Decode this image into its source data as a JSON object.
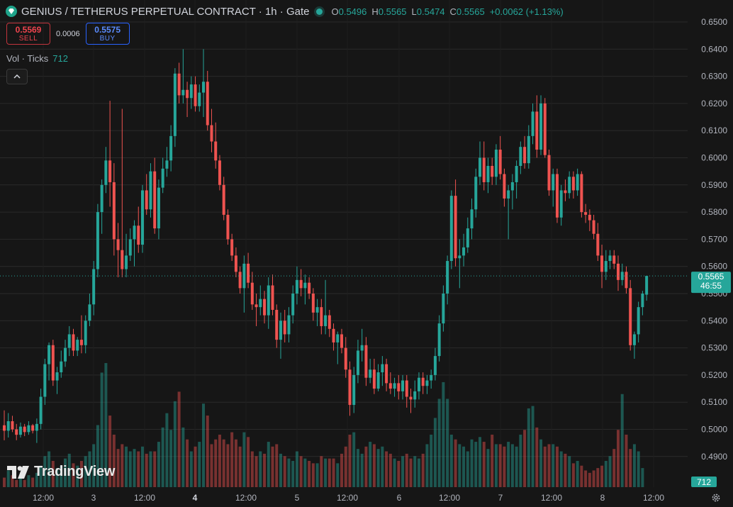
{
  "header": {
    "title": "GENIUS / TETHERUS PERPETUAL CONTRACT · 1h · Gate",
    "ohlc": {
      "o_label": "O",
      "o_value": "0.5496",
      "h_label": "H",
      "h_value": "0.5565",
      "l_label": "L",
      "l_value": "0.5474",
      "c_label": "C",
      "c_value": "0.5565",
      "change": "+0.0062 (+1.13%)"
    }
  },
  "trade": {
    "sell_price": "0.5569",
    "sell_label": "SELL",
    "spread": "0.0006",
    "buy_price": "0.5575",
    "buy_label": "BUY"
  },
  "volume_legend": {
    "label": "Vol · Ticks",
    "value": "712"
  },
  "price_tag": {
    "price": "0.5565",
    "countdown": "46:55"
  },
  "volume_tag": "712",
  "branding": "TradingView",
  "icons": [
    "diamond-logo-icon",
    "live-dot-icon",
    "chevron-up-icon",
    "tradingview-logo-icon",
    "gear-icon"
  ],
  "colors": {
    "up": "#26a69a",
    "down": "#ef5350",
    "background": "#161616",
    "grid": "#2a2a2a",
    "axis_text": "#b2b5be"
  },
  "chart_data": {
    "type": "candlestick",
    "interval": "1h",
    "y_axis": {
      "ticks": [
        "0.6500",
        "0.6400",
        "0.6300",
        "0.6200",
        "0.6100",
        "0.6000",
        "0.5900",
        "0.5800",
        "0.5700",
        "0.5600",
        "0.5500",
        "0.5400",
        "0.5300",
        "0.5200",
        "0.5100",
        "0.5000",
        "0.4900"
      ],
      "range": [
        0.4845,
        0.6535
      ]
    },
    "x_axis": {
      "labels": [
        "12:00",
        "3",
        "12:00",
        "4",
        "12:00",
        "5",
        "12:00",
        "6",
        "12:00",
        "7",
        "12:00",
        "8",
        "12:00"
      ],
      "bold": [
        "4"
      ]
    },
    "last_price": 0.5565,
    "candles": [
      {
        "o": 0.5015,
        "h": 0.507,
        "l": 0.496,
        "c": 0.4995
      },
      {
        "o": 0.4995,
        "h": 0.506,
        "l": 0.497,
        "c": 0.503
      },
      {
        "o": 0.503,
        "h": 0.505,
        "l": 0.499,
        "c": 0.5
      },
      {
        "o": 0.5,
        "h": 0.502,
        "l": 0.496,
        "c": 0.498
      },
      {
        "o": 0.498,
        "h": 0.5025,
        "l": 0.497,
        "c": 0.501
      },
      {
        "o": 0.501,
        "h": 0.502,
        "l": 0.4975,
        "c": 0.499
      },
      {
        "o": 0.499,
        "h": 0.503,
        "l": 0.498,
        "c": 0.5015
      },
      {
        "o": 0.5015,
        "h": 0.502,
        "l": 0.4985,
        "c": 0.4995
      },
      {
        "o": 0.4995,
        "h": 0.504,
        "l": 0.495,
        "c": 0.502
      },
      {
        "o": 0.502,
        "h": 0.515,
        "l": 0.5,
        "c": 0.512
      },
      {
        "o": 0.512,
        "h": 0.526,
        "l": 0.509,
        "c": 0.524
      },
      {
        "o": 0.524,
        "h": 0.532,
        "l": 0.518,
        "c": 0.531
      },
      {
        "o": 0.531,
        "h": 0.533,
        "l": 0.516,
        "c": 0.518
      },
      {
        "o": 0.518,
        "h": 0.523,
        "l": 0.513,
        "c": 0.521
      },
      {
        "o": 0.521,
        "h": 0.529,
        "l": 0.519,
        "c": 0.525
      },
      {
        "o": 0.525,
        "h": 0.533,
        "l": 0.523,
        "c": 0.53
      },
      {
        "o": 0.53,
        "h": 0.538,
        "l": 0.527,
        "c": 0.535
      },
      {
        "o": 0.535,
        "h": 0.537,
        "l": 0.527,
        "c": 0.529
      },
      {
        "o": 0.529,
        "h": 0.534,
        "l": 0.527,
        "c": 0.533
      },
      {
        "o": 0.533,
        "h": 0.542,
        "l": 0.528,
        "c": 0.531
      },
      {
        "o": 0.531,
        "h": 0.542,
        "l": 0.528,
        "c": 0.54
      },
      {
        "o": 0.54,
        "h": 0.55,
        "l": 0.538,
        "c": 0.546
      },
      {
        "o": 0.546,
        "h": 0.562,
        "l": 0.542,
        "c": 0.559
      },
      {
        "o": 0.559,
        "h": 0.583,
        "l": 0.556,
        "c": 0.58
      },
      {
        "o": 0.58,
        "h": 0.592,
        "l": 0.572,
        "c": 0.59
      },
      {
        "o": 0.59,
        "h": 0.604,
        "l": 0.587,
        "c": 0.599
      },
      {
        "o": 0.599,
        "h": 0.621,
        "l": 0.582,
        "c": 0.591
      },
      {
        "o": 0.591,
        "h": 0.598,
        "l": 0.564,
        "c": 0.57
      },
      {
        "o": 0.57,
        "h": 0.576,
        "l": 0.556,
        "c": 0.566
      },
      {
        "o": 0.566,
        "h": 0.618,
        "l": 0.556,
        "c": 0.559
      },
      {
        "o": 0.559,
        "h": 0.572,
        "l": 0.556,
        "c": 0.564
      },
      {
        "o": 0.564,
        "h": 0.574,
        "l": 0.562,
        "c": 0.57
      },
      {
        "o": 0.57,
        "h": 0.577,
        "l": 0.56,
        "c": 0.575
      },
      {
        "o": 0.575,
        "h": 0.582,
        "l": 0.565,
        "c": 0.568
      },
      {
        "o": 0.568,
        "h": 0.59,
        "l": 0.565,
        "c": 0.588
      },
      {
        "o": 0.588,
        "h": 0.594,
        "l": 0.579,
        "c": 0.581
      },
      {
        "o": 0.581,
        "h": 0.598,
        "l": 0.578,
        "c": 0.595
      },
      {
        "o": 0.595,
        "h": 0.6,
        "l": 0.572,
        "c": 0.574
      },
      {
        "o": 0.574,
        "h": 0.592,
        "l": 0.57,
        "c": 0.589
      },
      {
        "o": 0.589,
        "h": 0.6,
        "l": 0.587,
        "c": 0.596
      },
      {
        "o": 0.596,
        "h": 0.604,
        "l": 0.593,
        "c": 0.599
      },
      {
        "o": 0.599,
        "h": 0.612,
        "l": 0.595,
        "c": 0.608
      },
      {
        "o": 0.608,
        "h": 0.633,
        "l": 0.604,
        "c": 0.631
      },
      {
        "o": 0.631,
        "h": 0.635,
        "l": 0.62,
        "c": 0.623
      },
      {
        "o": 0.623,
        "h": 0.64,
        "l": 0.62,
        "c": 0.625
      },
      {
        "o": 0.625,
        "h": 0.628,
        "l": 0.615,
        "c": 0.622
      },
      {
        "o": 0.622,
        "h": 0.63,
        "l": 0.618,
        "c": 0.627
      },
      {
        "o": 0.627,
        "h": 0.63,
        "l": 0.617,
        "c": 0.619
      },
      {
        "o": 0.619,
        "h": 0.627,
        "l": 0.617,
        "c": 0.624
      },
      {
        "o": 0.624,
        "h": 0.64,
        "l": 0.615,
        "c": 0.628
      },
      {
        "o": 0.628,
        "h": 0.632,
        "l": 0.61,
        "c": 0.612
      },
      {
        "o": 0.612,
        "h": 0.618,
        "l": 0.602,
        "c": 0.606
      },
      {
        "o": 0.606,
        "h": 0.613,
        "l": 0.596,
        "c": 0.599
      },
      {
        "o": 0.599,
        "h": 0.601,
        "l": 0.588,
        "c": 0.59
      },
      {
        "o": 0.59,
        "h": 0.593,
        "l": 0.577,
        "c": 0.579
      },
      {
        "o": 0.579,
        "h": 0.581,
        "l": 0.568,
        "c": 0.57
      },
      {
        "o": 0.57,
        "h": 0.572,
        "l": 0.562,
        "c": 0.564
      },
      {
        "o": 0.564,
        "h": 0.567,
        "l": 0.556,
        "c": 0.558
      },
      {
        "o": 0.558,
        "h": 0.56,
        "l": 0.55,
        "c": 0.552
      },
      {
        "o": 0.552,
        "h": 0.564,
        "l": 0.543,
        "c": 0.561
      },
      {
        "o": 0.561,
        "h": 0.565,
        "l": 0.552,
        "c": 0.554
      },
      {
        "o": 0.554,
        "h": 0.558,
        "l": 0.544,
        "c": 0.546
      },
      {
        "o": 0.546,
        "h": 0.55,
        "l": 0.538,
        "c": 0.545
      },
      {
        "o": 0.545,
        "h": 0.553,
        "l": 0.542,
        "c": 0.548
      },
      {
        "o": 0.548,
        "h": 0.551,
        "l": 0.539,
        "c": 0.542
      },
      {
        "o": 0.542,
        "h": 0.556,
        "l": 0.537,
        "c": 0.553
      },
      {
        "o": 0.553,
        "h": 0.557,
        "l": 0.542,
        "c": 0.544
      },
      {
        "o": 0.544,
        "h": 0.546,
        "l": 0.53,
        "c": 0.533
      },
      {
        "o": 0.533,
        "h": 0.543,
        "l": 0.526,
        "c": 0.54
      },
      {
        "o": 0.54,
        "h": 0.544,
        "l": 0.532,
        "c": 0.535
      },
      {
        "o": 0.535,
        "h": 0.545,
        "l": 0.532,
        "c": 0.542
      },
      {
        "o": 0.542,
        "h": 0.553,
        "l": 0.539,
        "c": 0.55
      },
      {
        "o": 0.55,
        "h": 0.56,
        "l": 0.546,
        "c": 0.555
      },
      {
        "o": 0.555,
        "h": 0.559,
        "l": 0.549,
        "c": 0.552
      },
      {
        "o": 0.552,
        "h": 0.557,
        "l": 0.546,
        "c": 0.554
      },
      {
        "o": 0.554,
        "h": 0.556,
        "l": 0.548,
        "c": 0.55
      },
      {
        "o": 0.55,
        "h": 0.552,
        "l": 0.54,
        "c": 0.543
      },
      {
        "o": 0.543,
        "h": 0.548,
        "l": 0.538,
        "c": 0.545
      },
      {
        "o": 0.545,
        "h": 0.548,
        "l": 0.535,
        "c": 0.538
      },
      {
        "o": 0.538,
        "h": 0.555,
        "l": 0.535,
        "c": 0.542
      },
      {
        "o": 0.542,
        "h": 0.544,
        "l": 0.534,
        "c": 0.537
      },
      {
        "o": 0.537,
        "h": 0.539,
        "l": 0.529,
        "c": 0.532
      },
      {
        "o": 0.532,
        "h": 0.536,
        "l": 0.524,
        "c": 0.535
      },
      {
        "o": 0.535,
        "h": 0.537,
        "l": 0.528,
        "c": 0.53
      },
      {
        "o": 0.53,
        "h": 0.534,
        "l": 0.519,
        "c": 0.522
      },
      {
        "o": 0.522,
        "h": 0.525,
        "l": 0.505,
        "c": 0.509
      },
      {
        "o": 0.509,
        "h": 0.523,
        "l": 0.506,
        "c": 0.52
      },
      {
        "o": 0.52,
        "h": 0.533,
        "l": 0.517,
        "c": 0.529
      },
      {
        "o": 0.529,
        "h": 0.537,
        "l": 0.525,
        "c": 0.531
      },
      {
        "o": 0.531,
        "h": 0.534,
        "l": 0.516,
        "c": 0.519
      },
      {
        "o": 0.519,
        "h": 0.526,
        "l": 0.517,
        "c": 0.522
      },
      {
        "o": 0.522,
        "h": 0.526,
        "l": 0.513,
        "c": 0.515
      },
      {
        "o": 0.515,
        "h": 0.524,
        "l": 0.514,
        "c": 0.521
      },
      {
        "o": 0.521,
        "h": 0.527,
        "l": 0.516,
        "c": 0.524
      },
      {
        "o": 0.524,
        "h": 0.526,
        "l": 0.514,
        "c": 0.517
      },
      {
        "o": 0.517,
        "h": 0.521,
        "l": 0.513,
        "c": 0.515
      },
      {
        "o": 0.515,
        "h": 0.519,
        "l": 0.512,
        "c": 0.517
      },
      {
        "o": 0.517,
        "h": 0.52,
        "l": 0.511,
        "c": 0.514
      },
      {
        "o": 0.514,
        "h": 0.52,
        "l": 0.511,
        "c": 0.518
      },
      {
        "o": 0.518,
        "h": 0.52,
        "l": 0.508,
        "c": 0.512
      },
      {
        "o": 0.512,
        "h": 0.515,
        "l": 0.506,
        "c": 0.511
      },
      {
        "o": 0.511,
        "h": 0.518,
        "l": 0.508,
        "c": 0.514
      },
      {
        "o": 0.514,
        "h": 0.521,
        "l": 0.511,
        "c": 0.519
      },
      {
        "o": 0.519,
        "h": 0.521,
        "l": 0.513,
        "c": 0.516
      },
      {
        "o": 0.516,
        "h": 0.52,
        "l": 0.513,
        "c": 0.518
      },
      {
        "o": 0.518,
        "h": 0.522,
        "l": 0.515,
        "c": 0.52
      },
      {
        "o": 0.52,
        "h": 0.53,
        "l": 0.518,
        "c": 0.527
      },
      {
        "o": 0.527,
        "h": 0.542,
        "l": 0.525,
        "c": 0.539
      },
      {
        "o": 0.539,
        "h": 0.553,
        "l": 0.536,
        "c": 0.55
      },
      {
        "o": 0.55,
        "h": 0.564,
        "l": 0.546,
        "c": 0.562
      },
      {
        "o": 0.562,
        "h": 0.588,
        "l": 0.559,
        "c": 0.586
      },
      {
        "o": 0.586,
        "h": 0.592,
        "l": 0.56,
        "c": 0.563
      },
      {
        "o": 0.563,
        "h": 0.57,
        "l": 0.552,
        "c": 0.564
      },
      {
        "o": 0.564,
        "h": 0.572,
        "l": 0.56,
        "c": 0.567
      },
      {
        "o": 0.567,
        "h": 0.578,
        "l": 0.565,
        "c": 0.574
      },
      {
        "o": 0.574,
        "h": 0.585,
        "l": 0.57,
        "c": 0.581
      },
      {
        "o": 0.581,
        "h": 0.596,
        "l": 0.578,
        "c": 0.593
      },
      {
        "o": 0.593,
        "h": 0.606,
        "l": 0.59,
        "c": 0.6
      },
      {
        "o": 0.6,
        "h": 0.606,
        "l": 0.588,
        "c": 0.591
      },
      {
        "o": 0.591,
        "h": 0.6,
        "l": 0.587,
        "c": 0.597
      },
      {
        "o": 0.597,
        "h": 0.6,
        "l": 0.59,
        "c": 0.593
      },
      {
        "o": 0.593,
        "h": 0.605,
        "l": 0.59,
        "c": 0.603
      },
      {
        "o": 0.603,
        "h": 0.608,
        "l": 0.592,
        "c": 0.594
      },
      {
        "o": 0.594,
        "h": 0.596,
        "l": 0.582,
        "c": 0.585
      },
      {
        "o": 0.585,
        "h": 0.59,
        "l": 0.57,
        "c": 0.588
      },
      {
        "o": 0.588,
        "h": 0.594,
        "l": 0.581,
        "c": 0.591
      },
      {
        "o": 0.591,
        "h": 0.599,
        "l": 0.585,
        "c": 0.597
      },
      {
        "o": 0.597,
        "h": 0.606,
        "l": 0.594,
        "c": 0.604
      },
      {
        "o": 0.604,
        "h": 0.608,
        "l": 0.596,
        "c": 0.598
      },
      {
        "o": 0.598,
        "h": 0.612,
        "l": 0.596,
        "c": 0.608
      },
      {
        "o": 0.608,
        "h": 0.62,
        "l": 0.605,
        "c": 0.617
      },
      {
        "o": 0.617,
        "h": 0.623,
        "l": 0.6,
        "c": 0.603
      },
      {
        "o": 0.603,
        "h": 0.623,
        "l": 0.601,
        "c": 0.62
      },
      {
        "o": 0.62,
        "h": 0.622,
        "l": 0.6,
        "c": 0.601
      },
      {
        "o": 0.601,
        "h": 0.603,
        "l": 0.586,
        "c": 0.588
      },
      {
        "o": 0.588,
        "h": 0.596,
        "l": 0.582,
        "c": 0.594
      },
      {
        "o": 0.594,
        "h": 0.596,
        "l": 0.576,
        "c": 0.578
      },
      {
        "o": 0.578,
        "h": 0.59,
        "l": 0.575,
        "c": 0.588
      },
      {
        "o": 0.588,
        "h": 0.592,
        "l": 0.584,
        "c": 0.587
      },
      {
        "o": 0.587,
        "h": 0.595,
        "l": 0.585,
        "c": 0.593
      },
      {
        "o": 0.593,
        "h": 0.595,
        "l": 0.585,
        "c": 0.588
      },
      {
        "o": 0.588,
        "h": 0.596,
        "l": 0.586,
        "c": 0.594
      },
      {
        "o": 0.594,
        "h": 0.595,
        "l": 0.578,
        "c": 0.58
      },
      {
        "o": 0.58,
        "h": 0.583,
        "l": 0.576,
        "c": 0.579
      },
      {
        "o": 0.579,
        "h": 0.581,
        "l": 0.573,
        "c": 0.577
      },
      {
        "o": 0.577,
        "h": 0.579,
        "l": 0.57,
        "c": 0.572
      },
      {
        "o": 0.572,
        "h": 0.576,
        "l": 0.562,
        "c": 0.564
      },
      {
        "o": 0.564,
        "h": 0.568,
        "l": 0.552,
        "c": 0.558
      },
      {
        "o": 0.558,
        "h": 0.566,
        "l": 0.555,
        "c": 0.562
      },
      {
        "o": 0.562,
        "h": 0.566,
        "l": 0.559,
        "c": 0.564
      },
      {
        "o": 0.564,
        "h": 0.566,
        "l": 0.559,
        "c": 0.561
      },
      {
        "o": 0.561,
        "h": 0.564,
        "l": 0.551,
        "c": 0.555
      },
      {
        "o": 0.555,
        "h": 0.561,
        "l": 0.553,
        "c": 0.558
      },
      {
        "o": 0.558,
        "h": 0.56,
        "l": 0.55,
        "c": 0.552
      },
      {
        "o": 0.552,
        "h": 0.555,
        "l": 0.529,
        "c": 0.531
      },
      {
        "o": 0.531,
        "h": 0.536,
        "l": 0.526,
        "c": 0.535
      },
      {
        "o": 0.535,
        "h": 0.547,
        "l": 0.532,
        "c": 0.545
      },
      {
        "o": 0.545,
        "h": 0.551,
        "l": 0.542,
        "c": 0.55
      },
      {
        "o": 0.5496,
        "h": 0.5565,
        "l": 0.5474,
        "c": 0.5565
      }
    ],
    "volume": [
      4,
      7,
      5,
      3,
      4,
      3,
      5,
      4,
      6,
      9,
      13,
      15,
      11,
      8,
      9,
      12,
      14,
      10,
      9,
      11,
      13,
      15,
      18,
      26,
      48,
      52,
      30,
      22,
      16,
      18,
      17,
      15,
      16,
      15,
      17,
      14,
      15,
      15,
      19,
      25,
      31,
      24,
      36,
      40,
      25,
      20,
      15,
      17,
      19,
      35,
      30,
      18,
      20,
      22,
      20,
      18,
      23,
      20,
      17,
      23,
      21,
      15,
      13,
      15,
      14,
      19,
      17,
      18,
      14,
      13,
      12,
      11,
      15,
      13,
      12,
      11,
      10,
      10,
      13,
      12,
      12,
      12,
      10,
      14,
      17,
      22,
      23,
      16,
      14,
      17,
      19,
      18,
      16,
      17,
      15,
      14,
      12,
      11,
      13,
      14,
      12,
      13,
      12,
      14,
      18,
      22,
      29,
      37,
      44,
      37,
      22,
      20,
      18,
      17,
      15,
      20,
      19,
      21,
      19,
      16,
      22,
      18,
      18,
      17,
      19,
      18,
      17,
      22,
      24,
      33,
      34,
      25,
      20,
      17,
      18,
      18,
      17,
      15,
      14,
      13,
      10,
      11,
      9,
      7,
      6,
      7,
      8,
      9,
      11,
      13,
      16,
      24,
      39,
      22,
      16,
      18,
      15,
      8
    ]
  }
}
